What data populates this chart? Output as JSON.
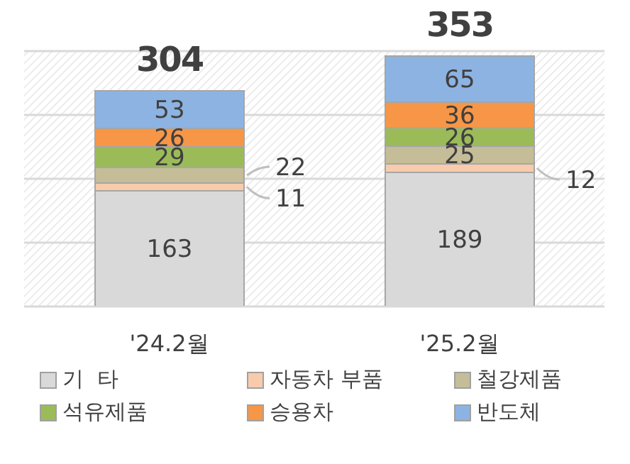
{
  "chart_data": {
    "type": "bar",
    "stacked": true,
    "categories": [
      "'24.2월",
      "'25.2월"
    ],
    "series": [
      {
        "name": "기  타",
        "color": "#d9d9d9",
        "values": [
          163,
          189
        ]
      },
      {
        "name": "자동차 부품",
        "color": "#f8cbad",
        "values": [
          11,
          12
        ]
      },
      {
        "name": "철강제품",
        "color": "#c4bd97",
        "values": [
          22,
          25
        ]
      },
      {
        "name": "석유제품",
        "color": "#9bbb59",
        "values": [
          29,
          26
        ]
      },
      {
        "name": "승용차",
        "color": "#f79646",
        "values": [
          26,
          36
        ]
      },
      {
        "name": "반도체",
        "color": "#8db3e2",
        "values": [
          53,
          65
        ]
      }
    ],
    "tick_labels": "x",
    "grid": "y",
    "legend": "bottom",
    "data_labels": true,
    "totals": [
      "304",
      "353"
    ]
  }
}
